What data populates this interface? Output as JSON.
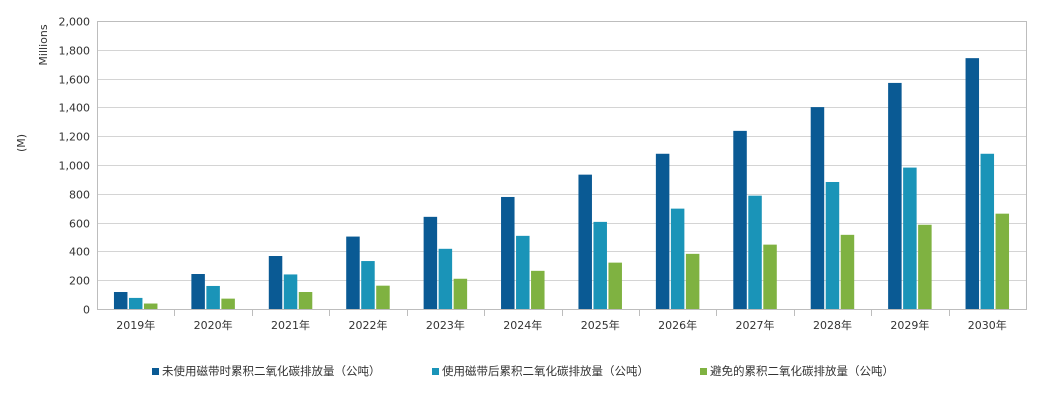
{
  "chart_data": {
    "type": "bar",
    "ylabel_top": "Millions",
    "ylabel_unit": "(M)",
    "ylim": [
      0,
      2000
    ],
    "yticks": [
      "0",
      "200",
      "400",
      "600",
      "800",
      "1,000",
      "1,200",
      "1,400",
      "1,600",
      "1,800",
      "2,000"
    ],
    "ytick_values": [
      0,
      200,
      400,
      600,
      800,
      1000,
      1200,
      1400,
      1600,
      1800,
      2000
    ],
    "categories": [
      "2019年",
      "2020年",
      "2021年",
      "2022年",
      "2023年",
      "2024年",
      "2025年",
      "2026年",
      "2027年",
      "2028年",
      "2029年",
      "2030年"
    ],
    "series": [
      {
        "name": "未使用磁带时累积二氧化碳排放量（公吨）",
        "color": "#0a5a94",
        "values": [
          118,
          243,
          368,
          503,
          640,
          778,
          933,
          1078,
          1237,
          1402,
          1570,
          1742
        ]
      },
      {
        "name": "使用磁带后累积二氧化碳排放量（公吨）",
        "color": "#1a94b8",
        "values": [
          77,
          160,
          240,
          333,
          418,
          508,
          605,
          697,
          787,
          882,
          982,
          1078
        ]
      },
      {
        "name": "避免的累积二氧化碳排放量（公吨）",
        "color": "#7fb241",
        "values": [
          38,
          72,
          118,
          162,
          210,
          265,
          322,
          383,
          447,
          515,
          585,
          662
        ]
      }
    ],
    "grid": "horizontal",
    "legend_position": "bottom"
  }
}
